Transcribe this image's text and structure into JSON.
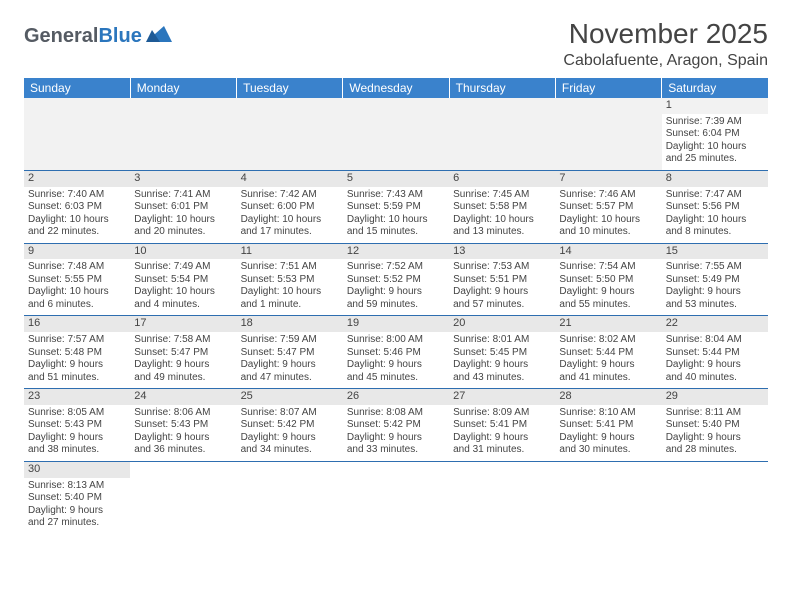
{
  "brand": {
    "part1": "General",
    "part2": "Blue",
    "color_dark": "#555b63",
    "color_brand": "#2b76bd"
  },
  "title": "November 2025",
  "location": "Cabolafuente, Aragon, Spain",
  "header_bg": "#3a82cc",
  "border_color": "#2e6eb0",
  "day_headers": [
    "Sunday",
    "Monday",
    "Tuesday",
    "Wednesday",
    "Thursday",
    "Friday",
    "Saturday"
  ],
  "weeks": [
    [
      null,
      null,
      null,
      null,
      null,
      null,
      {
        "n": "1",
        "sr": "Sunrise: 7:39 AM",
        "ss": "Sunset: 6:04 PM",
        "d1": "Daylight: 10 hours",
        "d2": "and 25 minutes."
      }
    ],
    [
      {
        "n": "2",
        "sr": "Sunrise: 7:40 AM",
        "ss": "Sunset: 6:03 PM",
        "d1": "Daylight: 10 hours",
        "d2": "and 22 minutes."
      },
      {
        "n": "3",
        "sr": "Sunrise: 7:41 AM",
        "ss": "Sunset: 6:01 PM",
        "d1": "Daylight: 10 hours",
        "d2": "and 20 minutes."
      },
      {
        "n": "4",
        "sr": "Sunrise: 7:42 AM",
        "ss": "Sunset: 6:00 PM",
        "d1": "Daylight: 10 hours",
        "d2": "and 17 minutes."
      },
      {
        "n": "5",
        "sr": "Sunrise: 7:43 AM",
        "ss": "Sunset: 5:59 PM",
        "d1": "Daylight: 10 hours",
        "d2": "and 15 minutes."
      },
      {
        "n": "6",
        "sr": "Sunrise: 7:45 AM",
        "ss": "Sunset: 5:58 PM",
        "d1": "Daylight: 10 hours",
        "d2": "and 13 minutes."
      },
      {
        "n": "7",
        "sr": "Sunrise: 7:46 AM",
        "ss": "Sunset: 5:57 PM",
        "d1": "Daylight: 10 hours",
        "d2": "and 10 minutes."
      },
      {
        "n": "8",
        "sr": "Sunrise: 7:47 AM",
        "ss": "Sunset: 5:56 PM",
        "d1": "Daylight: 10 hours",
        "d2": "and 8 minutes."
      }
    ],
    [
      {
        "n": "9",
        "sr": "Sunrise: 7:48 AM",
        "ss": "Sunset: 5:55 PM",
        "d1": "Daylight: 10 hours",
        "d2": "and 6 minutes."
      },
      {
        "n": "10",
        "sr": "Sunrise: 7:49 AM",
        "ss": "Sunset: 5:54 PM",
        "d1": "Daylight: 10 hours",
        "d2": "and 4 minutes."
      },
      {
        "n": "11",
        "sr": "Sunrise: 7:51 AM",
        "ss": "Sunset: 5:53 PM",
        "d1": "Daylight: 10 hours",
        "d2": "and 1 minute."
      },
      {
        "n": "12",
        "sr": "Sunrise: 7:52 AM",
        "ss": "Sunset: 5:52 PM",
        "d1": "Daylight: 9 hours",
        "d2": "and 59 minutes."
      },
      {
        "n": "13",
        "sr": "Sunrise: 7:53 AM",
        "ss": "Sunset: 5:51 PM",
        "d1": "Daylight: 9 hours",
        "d2": "and 57 minutes."
      },
      {
        "n": "14",
        "sr": "Sunrise: 7:54 AM",
        "ss": "Sunset: 5:50 PM",
        "d1": "Daylight: 9 hours",
        "d2": "and 55 minutes."
      },
      {
        "n": "15",
        "sr": "Sunrise: 7:55 AM",
        "ss": "Sunset: 5:49 PM",
        "d1": "Daylight: 9 hours",
        "d2": "and 53 minutes."
      }
    ],
    [
      {
        "n": "16",
        "sr": "Sunrise: 7:57 AM",
        "ss": "Sunset: 5:48 PM",
        "d1": "Daylight: 9 hours",
        "d2": "and 51 minutes."
      },
      {
        "n": "17",
        "sr": "Sunrise: 7:58 AM",
        "ss": "Sunset: 5:47 PM",
        "d1": "Daylight: 9 hours",
        "d2": "and 49 minutes."
      },
      {
        "n": "18",
        "sr": "Sunrise: 7:59 AM",
        "ss": "Sunset: 5:47 PM",
        "d1": "Daylight: 9 hours",
        "d2": "and 47 minutes."
      },
      {
        "n": "19",
        "sr": "Sunrise: 8:00 AM",
        "ss": "Sunset: 5:46 PM",
        "d1": "Daylight: 9 hours",
        "d2": "and 45 minutes."
      },
      {
        "n": "20",
        "sr": "Sunrise: 8:01 AM",
        "ss": "Sunset: 5:45 PM",
        "d1": "Daylight: 9 hours",
        "d2": "and 43 minutes."
      },
      {
        "n": "21",
        "sr": "Sunrise: 8:02 AM",
        "ss": "Sunset: 5:44 PM",
        "d1": "Daylight: 9 hours",
        "d2": "and 41 minutes."
      },
      {
        "n": "22",
        "sr": "Sunrise: 8:04 AM",
        "ss": "Sunset: 5:44 PM",
        "d1": "Daylight: 9 hours",
        "d2": "and 40 minutes."
      }
    ],
    [
      {
        "n": "23",
        "sr": "Sunrise: 8:05 AM",
        "ss": "Sunset: 5:43 PM",
        "d1": "Daylight: 9 hours",
        "d2": "and 38 minutes."
      },
      {
        "n": "24",
        "sr": "Sunrise: 8:06 AM",
        "ss": "Sunset: 5:43 PM",
        "d1": "Daylight: 9 hours",
        "d2": "and 36 minutes."
      },
      {
        "n": "25",
        "sr": "Sunrise: 8:07 AM",
        "ss": "Sunset: 5:42 PM",
        "d1": "Daylight: 9 hours",
        "d2": "and 34 minutes."
      },
      {
        "n": "26",
        "sr": "Sunrise: 8:08 AM",
        "ss": "Sunset: 5:42 PM",
        "d1": "Daylight: 9 hours",
        "d2": "and 33 minutes."
      },
      {
        "n": "27",
        "sr": "Sunrise: 8:09 AM",
        "ss": "Sunset: 5:41 PM",
        "d1": "Daylight: 9 hours",
        "d2": "and 31 minutes."
      },
      {
        "n": "28",
        "sr": "Sunrise: 8:10 AM",
        "ss": "Sunset: 5:41 PM",
        "d1": "Daylight: 9 hours",
        "d2": "and 30 minutes."
      },
      {
        "n": "29",
        "sr": "Sunrise: 8:11 AM",
        "ss": "Sunset: 5:40 PM",
        "d1": "Daylight: 9 hours",
        "d2": "and 28 minutes."
      }
    ],
    [
      {
        "n": "30",
        "sr": "Sunrise: 8:13 AM",
        "ss": "Sunset: 5:40 PM",
        "d1": "Daylight: 9 hours",
        "d2": "and 27 minutes."
      },
      null,
      null,
      null,
      null,
      null,
      null
    ]
  ]
}
